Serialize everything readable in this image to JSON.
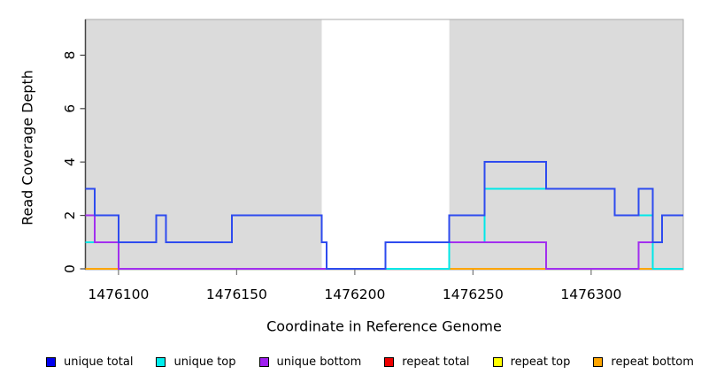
{
  "chart_data": {
    "type": "line",
    "subtype": "step-coverage",
    "title": "",
    "xlabel": "Coordinate in Reference Genome",
    "ylabel": "Read Coverage Depth",
    "xlim": [
      1476086,
      1476339
    ],
    "ylim": [
      0,
      9.3
    ],
    "x_ticks": [
      1476100,
      1476150,
      1476200,
      1476250,
      1476300
    ],
    "y_ticks": [
      0,
      2,
      4,
      6,
      8
    ],
    "grid": false,
    "legend_position": "bottom",
    "background_color": "#ffffff",
    "shaded_region_color": "#dbdbdb",
    "border_color": "#a8a8a8",
    "axis_color": "#454545",
    "tick_color": "#777777",
    "shaded_regions": [
      {
        "x0": 1476086,
        "x1": 1476186
      },
      {
        "x0": 1476240,
        "x1": 1476339
      }
    ],
    "series": [
      {
        "name": "repeat total",
        "color": "#e00000",
        "steps": [
          [
            1476086,
            0
          ]
        ]
      },
      {
        "name": "repeat top",
        "color": "#ffff00",
        "steps": [
          [
            1476086,
            0
          ]
        ]
      },
      {
        "name": "repeat bottom",
        "color": "#ffa500",
        "steps": [
          [
            1476086,
            0
          ]
        ]
      },
      {
        "name": "unique top",
        "color": "#00e8e8",
        "steps": [
          [
            1476086,
            1
          ],
          [
            1476116,
            2
          ],
          [
            1476120,
            1
          ],
          [
            1476148,
            2
          ],
          [
            1476186,
            1
          ],
          [
            1476188,
            0
          ],
          [
            1476240,
            1
          ],
          [
            1476255,
            3
          ],
          [
            1476310,
            2
          ],
          [
            1476326,
            0
          ]
        ]
      },
      {
        "name": "unique bottom",
        "color": "#a22fef",
        "steps": [
          [
            1476086,
            2
          ],
          [
            1476090,
            1
          ],
          [
            1476100,
            0
          ],
          [
            1476213,
            1
          ],
          [
            1476281,
            0
          ],
          [
            1476320,
            1
          ],
          [
            1476330,
            2
          ]
        ]
      },
      {
        "name": "unique total",
        "color": "#2e4bef",
        "steps": [
          [
            1476086,
            3
          ],
          [
            1476090,
            2
          ],
          [
            1476100,
            1
          ],
          [
            1476116,
            2
          ],
          [
            1476120,
            1
          ],
          [
            1476148,
            2
          ],
          [
            1476186,
            1
          ],
          [
            1476188,
            0
          ],
          [
            1476213,
            1
          ],
          [
            1476240,
            2
          ],
          [
            1476255,
            4
          ],
          [
            1476281,
            3
          ],
          [
            1476310,
            2
          ],
          [
            1476320,
            3
          ],
          [
            1476326,
            1
          ],
          [
            1476330,
            2
          ]
        ]
      }
    ],
    "legend": [
      {
        "label": "unique total",
        "color": "#0000ee"
      },
      {
        "label": "unique top",
        "color": "#00eeee"
      },
      {
        "label": "unique bottom",
        "color": "#a020f0"
      },
      {
        "label": "repeat total",
        "color": "#ee0000"
      },
      {
        "label": "repeat top",
        "color": "#ffff00"
      },
      {
        "label": "repeat bottom",
        "color": "#ffa500"
      }
    ]
  }
}
